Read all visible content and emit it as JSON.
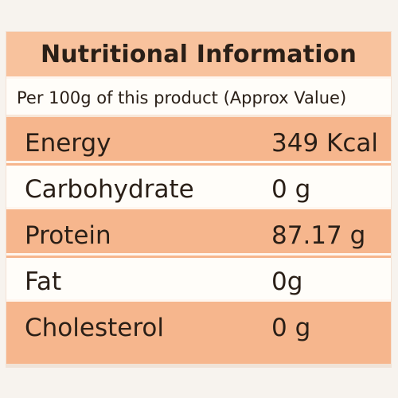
{
  "label": {
    "title": "Nutritional Information",
    "subtitle": "Per 100g of this product (Approx Value)",
    "rows": [
      {
        "name": "Energy",
        "value": "349 Kcal"
      },
      {
        "name": "Carbohydrate",
        "value": "0 g"
      },
      {
        "name": "Protein",
        "value": "87.17 g"
      },
      {
        "name": "Fat",
        "value": "0g"
      },
      {
        "name": "Cholesterol",
        "value": "0 g"
      }
    ]
  },
  "colors": {
    "accent_peach": "#f6b68d",
    "title_peach": "#f8c29d",
    "row_light": "#fffdf9",
    "text": "#2a1f17"
  }
}
